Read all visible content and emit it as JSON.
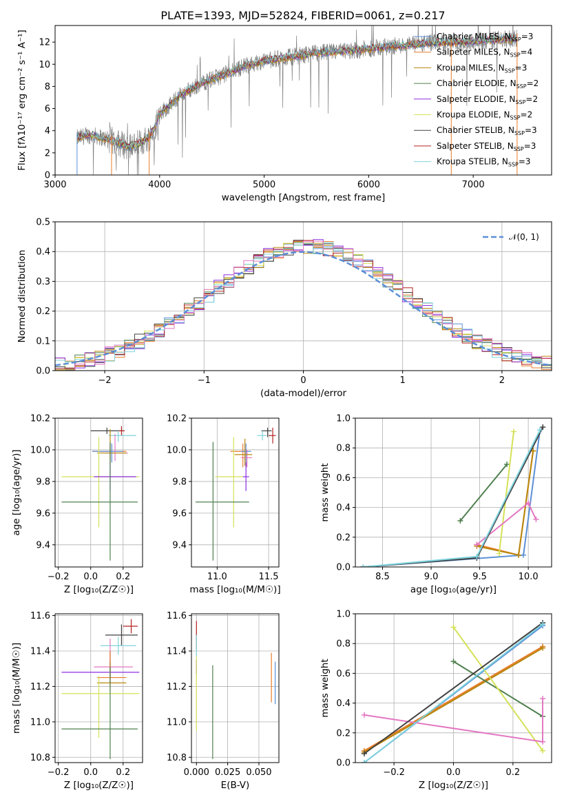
{
  "title": "PLATE=1393, MJD=52824, FIBERID=0061, z=0.217",
  "model_colors": {
    "Chabrier MILES": "#5b8fd6",
    "Salpeter MILES": "#e87d2a",
    "Kroupa MILES": "#b8860b",
    "Chabrier ELODIE": "#4f7f4f",
    "Salpeter ELODIE": "#8a2be2",
    "Kroupa ELODIE": "#d4e157",
    "Chabrier STELIB": "#404040",
    "Salpeter STELIB": "#b22222",
    "Kroupa STELIB": "#7fd3dd",
    "Kroupa pink": "#e377c2",
    "data": "#808080",
    "normal": "#5b8fd6"
  },
  "chart_data": [
    {
      "id": "spectrum",
      "type": "line",
      "title": "PLATE=1393, MJD=52824, FIBERID=0061, z=0.217",
      "xlabel": "wavelength [Angstrom, rest frame]",
      "ylabel": "Flux [fλ10⁻¹⁷ erg cm⁻² s⁻¹ A⁻¹]",
      "xlim": [
        3000,
        7750
      ],
      "ylim": [
        0,
        13.5
      ],
      "xticks": [
        3000,
        4000,
        5000,
        6000,
        7000
      ],
      "yticks": [
        0,
        2,
        4,
        6,
        8,
        10,
        12
      ],
      "legend_position": "right",
      "legend": [
        {
          "label": "Chabrier MILES, N",
          "sub": "SSP",
          "tail": "=3",
          "color": "#5b8fd6"
        },
        {
          "label": "Salpeter MILES, N",
          "sub": "SSP",
          "tail": "=4",
          "color": "#e87d2a"
        },
        {
          "label": "Kroupa MILES, N",
          "sub": "SSP",
          "tail": "=3",
          "color": "#b8860b"
        },
        {
          "label": "Chabrier ELODIE, N",
          "sub": "SSP",
          "tail": "=2",
          "color": "#4f7f4f"
        },
        {
          "label": "Salpeter ELODIE, N",
          "sub": "SSP",
          "tail": "=2",
          "color": "#8a2be2"
        },
        {
          "label": "Kroupa ELODIE, N",
          "sub": "SSP",
          "tail": "=2",
          "color": "#d4e157"
        },
        {
          "label": "Chabrier STELIB, N",
          "sub": "SSP",
          "tail": "=3",
          "color": "#404040"
        },
        {
          "label": "Salpeter STELIB, N",
          "sub": "SSP",
          "tail": "=3",
          "color": "#b22222"
        },
        {
          "label": "Kroupa STELIB, N",
          "sub": "SSP",
          "tail": "=3",
          "color": "#7fd3dd"
        }
      ],
      "continuum_knots": [
        [
          3210,
          3.3
        ],
        [
          3300,
          3.6
        ],
        [
          3400,
          3.5
        ],
        [
          3500,
          3.2
        ],
        [
          3600,
          2.9
        ],
        [
          3700,
          2.6
        ],
        [
          3800,
          2.8
        ],
        [
          3900,
          3.4
        ],
        [
          3950,
          4.2
        ],
        [
          4000,
          5.6
        ],
        [
          4100,
          6.3
        ],
        [
          4200,
          7.2
        ],
        [
          4400,
          8.3
        ],
        [
          4600,
          9.0
        ],
        [
          4800,
          9.8
        ],
        [
          5000,
          10.3
        ],
        [
          5200,
          10.6
        ],
        [
          5500,
          11.0
        ],
        [
          5800,
          11.2
        ],
        [
          6000,
          11.4
        ],
        [
          6300,
          11.7
        ],
        [
          6600,
          11.9
        ],
        [
          6900,
          12.0
        ],
        [
          7200,
          12.2
        ],
        [
          7420,
          12.3
        ]
      ]
    },
    {
      "id": "residuals",
      "type": "line",
      "xlabel": "(data-model)/error",
      "ylabel": "Normed distribution",
      "xlim": [
        -2.5,
        2.5
      ],
      "ylim": [
        0,
        0.5
      ],
      "xticks": [
        -2,
        -1,
        0,
        1,
        2
      ],
      "yticks": [
        0.0,
        0.1,
        0.2,
        0.3,
        0.4,
        0.5
      ],
      "xtick_labels": [
        "−2",
        "−1",
        "0",
        "1",
        "2"
      ],
      "ytick_labels": [
        "0.0",
        "0.1",
        "0.2",
        "0.3",
        "0.4",
        "0.5"
      ],
      "legend": [
        {
          "label": "𝒩(0, 1)",
          "color": "#5b8fd6",
          "style": "dashed"
        }
      ],
      "bin_width": 0.1,
      "gaussian": {
        "mean": 0,
        "sigma": 1
      }
    },
    {
      "id": "age_vs_Z",
      "type": "scatter",
      "xlabel": "Z [log₁₀(Z/Z☉)]",
      "ylabel": "age  [log₁₀(age/yr)]",
      "xlim": [
        -0.22,
        0.32
      ],
      "ylim": [
        9.26,
        10.2
      ],
      "xticks": [
        -0.2,
        0.0,
        0.2
      ],
      "yticks": [
        9.4,
        9.6,
        9.8,
        10.0,
        10.2
      ],
      "xtick_labels": [
        "−0.2",
        "0.0",
        "0.2"
      ],
      "ytick_labels": [
        "9.4",
        "9.6",
        "9.8",
        "10.0",
        "10.2"
      ],
      "points": [
        {
          "x": 0.1,
          "y": 10.12,
          "xerr": [
            0.1,
            0.1
          ],
          "yerr": [
            0.02,
            0.02
          ],
          "color": "#404040"
        },
        {
          "x": 0.19,
          "y": 10.12,
          "xerr": [
            0.02,
            0.02
          ],
          "yerr": [
            0.03,
            0.03
          ],
          "color": "#b22222"
        },
        {
          "x": 0.17,
          "y": 10.09,
          "xerr": [
            0.06,
            0.11
          ],
          "yerr": [
            0.04,
            0.03
          ],
          "color": "#7fd3dd"
        },
        {
          "x": 0.12,
          "y": 9.99,
          "xerr": [
            0.11,
            0.1
          ],
          "yerr": [
            0.08,
            0.05
          ],
          "color": "#e87d2a"
        },
        {
          "x": 0.13,
          "y": 9.99,
          "xerr": [
            0.12,
            0.07
          ],
          "yerr": [
            0.07,
            0.05
          ],
          "color": "#5b8fd6"
        },
        {
          "x": 0.15,
          "y": 9.98,
          "xerr": [
            0.06,
            0.08
          ],
          "yerr": [
            0.05,
            0.12
          ],
          "color": "#e377c2"
        },
        {
          "x": 0.12,
          "y": 9.98,
          "xerr": [
            0.08,
            0.1
          ],
          "yerr": [
            0.05,
            0.15
          ],
          "color": "#b8860b"
        },
        {
          "x": 0.05,
          "y": 9.83,
          "xerr": [
            0.23,
            0.25
          ],
          "yerr": [
            0.32,
            0.25
          ],
          "color": "#d4e157"
        },
        {
          "x": 0.12,
          "y": 9.83,
          "xerr": [
            0.1,
            0.16
          ],
          "yerr": [
            0.09,
            0.09
          ],
          "color": "#8a2be2"
        },
        {
          "x": 0.12,
          "y": 9.67,
          "xerr": [
            0.3,
            0.17
          ],
          "yerr": [
            0.37,
            0.38
          ],
          "color": "#4f7f4f"
        }
      ]
    },
    {
      "id": "age_vs_mass",
      "type": "scatter",
      "xlabel": "mass [log₁₀(M/M☉)]",
      "ylabel": "",
      "xlim": [
        10.75,
        11.6
      ],
      "ylim": [
        9.26,
        10.2
      ],
      "xticks": [
        11.0,
        11.5
      ],
      "yticks": [
        9.4,
        9.6,
        9.8,
        10.0,
        10.2
      ],
      "xtick_labels": [
        "11.0",
        "11.5"
      ],
      "ytick_labels": [
        "9.4",
        "9.6",
        "9.8",
        "10.0",
        "10.2"
      ],
      "points": [
        {
          "x": 11.49,
          "y": 10.12,
          "xerr": [
            0.06,
            0.04
          ],
          "yerr": [
            0.04,
            0.02
          ],
          "color": "#404040"
        },
        {
          "x": 11.54,
          "y": 10.09,
          "xerr": [
            0.04,
            0.03
          ],
          "yerr": [
            0.05,
            0.05
          ],
          "color": "#b22222"
        },
        {
          "x": 11.44,
          "y": 10.09,
          "xerr": [
            0.05,
            0.04
          ],
          "yerr": [
            0.03,
            0.03
          ],
          "color": "#7fd3dd"
        },
        {
          "x": 11.25,
          "y": 9.99,
          "xerr": [
            0.12,
            0.05
          ],
          "yerr": [
            0.1,
            0.05
          ],
          "color": "#e87d2a"
        },
        {
          "x": 11.28,
          "y": 9.99,
          "xerr": [
            0.05,
            0.05
          ],
          "yerr": [
            0.1,
            0.05
          ],
          "color": "#5b8fd6"
        },
        {
          "x": 11.29,
          "y": 9.95,
          "xerr": [
            0.06,
            0.05
          ],
          "yerr": [
            0.06,
            0.05
          ],
          "color": "#e377c2"
        },
        {
          "x": 11.27,
          "y": 9.97,
          "xerr": [
            0.1,
            0.07
          ],
          "yerr": [
            0.07,
            0.1
          ],
          "color": "#b8860b"
        },
        {
          "x": 11.16,
          "y": 9.83,
          "xerr": [
            0.18,
            0.1
          ],
          "yerr": [
            0.32,
            0.25
          ],
          "color": "#d4e157"
        },
        {
          "x": 11.28,
          "y": 9.83,
          "xerr": [
            0.03,
            0.03
          ],
          "yerr": [
            0.09,
            0.09
          ],
          "color": "#8a2be2"
        },
        {
          "x": 10.96,
          "y": 9.67,
          "xerr": [
            0.17,
            0.35
          ],
          "yerr": [
            0.37,
            0.38
          ],
          "color": "#4f7f4f"
        }
      ]
    },
    {
      "id": "weight_vs_age",
      "type": "line",
      "xlabel": "age  [log₁₀(age/yr)]",
      "ylabel": "mass weight",
      "xlim": [
        8.22,
        10.24
      ],
      "ylim": [
        0,
        1
      ],
      "xticks": [
        8.5,
        9.0,
        9.5,
        10.0
      ],
      "yticks": [
        0.0,
        0.2,
        0.4,
        0.6,
        0.8,
        1.0
      ],
      "xtick_labels": [
        "8.5",
        "9.0",
        "9.5",
        "10.0"
      ],
      "ytick_labels": [
        "0.0",
        "0.2",
        "0.4",
        "0.6",
        "0.8",
        "1.0"
      ],
      "series": [
        {
          "color": "#5b8fd6",
          "points": [
            [
              8.3,
              0.0
            ],
            [
              9.95,
              0.08
            ],
            [
              10.12,
              0.92
            ]
          ]
        },
        {
          "color": "#e87d2a",
          "points": [
            [
              9.47,
              0.15
            ],
            [
              9.9,
              0.08
            ],
            [
              10.05,
              0.78
            ]
          ]
        },
        {
          "color": "#b8860b",
          "points": [
            [
              9.47,
              0.14
            ],
            [
              9.9,
              0.08
            ],
            [
              10.05,
              0.78
            ]
          ]
        },
        {
          "color": "#4f7f4f",
          "points": [
            [
              9.3,
              0.31
            ],
            [
              9.78,
              0.69
            ]
          ]
        },
        {
          "color": "#d4e157",
          "points": [
            [
              9.7,
              0.09
            ],
            [
              9.85,
              0.91
            ]
          ]
        },
        {
          "color": "#e377c2",
          "points": [
            [
              9.47,
              0.15
            ],
            [
              10.0,
              0.43
            ],
            [
              10.08,
              0.32
            ]
          ]
        },
        {
          "color": "#404040",
          "points": [
            [
              8.3,
              0.0
            ],
            [
              9.47,
              0.06
            ],
            [
              10.15,
              0.94
            ]
          ]
        },
        {
          "color": "#7fd3dd",
          "points": [
            [
              8.3,
              0.0
            ],
            [
              9.47,
              0.07
            ],
            [
              10.12,
              0.92
            ]
          ]
        }
      ]
    },
    {
      "id": "mass_vs_Z",
      "type": "scatter",
      "xlabel": "Z [log₁₀(Z/Z☉)]",
      "ylabel": "mass [log₁₀(M/M☉)]",
      "xlim": [
        -0.22,
        0.32
      ],
      "ylim": [
        10.77,
        11.61
      ],
      "xticks": [
        -0.2,
        0.0,
        0.2
      ],
      "yticks": [
        10.8,
        11.0,
        11.2,
        11.4,
        11.6
      ],
      "xtick_labels": [
        "−0.2",
        "0.0",
        "0.2"
      ],
      "ytick_labels": [
        "10.8",
        "11.0",
        "11.2",
        "11.4",
        "11.6"
      ],
      "points": [
        {
          "x": 0.25,
          "y": 11.54,
          "xerr": [
            0.05,
            0.04
          ],
          "yerr": [
            0.04,
            0.04
          ],
          "color": "#b22222"
        },
        {
          "x": 0.19,
          "y": 11.49,
          "xerr": [
            0.1,
            0.1
          ],
          "yerr": [
            0.06,
            0.06
          ],
          "color": "#404040"
        },
        {
          "x": 0.17,
          "y": 11.43,
          "xerr": [
            0.11,
            0.11
          ],
          "yerr": [
            0.05,
            0.05
          ],
          "color": "#7fd3dd"
        },
        {
          "x": 0.12,
          "y": 11.31,
          "xerr": [
            0.1,
            0.14
          ],
          "yerr": [
            0.07,
            0.16
          ],
          "color": "#e377c2"
        },
        {
          "x": 0.12,
          "y": 11.28,
          "xerr": [
            0.3,
            0.18
          ],
          "yerr": [
            0.06,
            0.12
          ],
          "color": "#8a2be2"
        },
        {
          "x": 0.12,
          "y": 11.25,
          "xerr": [
            0.08,
            0.1
          ],
          "yerr": [
            0.05,
            0.15
          ],
          "color": "#e87d2a"
        },
        {
          "x": 0.12,
          "y": 11.22,
          "xerr": [
            0.08,
            0.1
          ],
          "yerr": [
            0.05,
            0.12
          ],
          "color": "#b8860b"
        },
        {
          "x": 0.05,
          "y": 11.16,
          "xerr": [
            0.23,
            0.25
          ],
          "yerr": [
            0.25,
            0.1
          ],
          "color": "#d4e157"
        },
        {
          "x": 0.12,
          "y": 10.96,
          "xerr": [
            0.3,
            0.17
          ],
          "yerr": [
            0.17,
            0.35
          ],
          "color": "#4f7f4f"
        }
      ]
    },
    {
      "id": "mass_vs_ebv",
      "type": "scatter",
      "xlabel": "E(B-V)",
      "ylabel": "",
      "xlim": [
        -0.004,
        0.066
      ],
      "ylim": [
        10.77,
        11.61
      ],
      "xticks": [
        0.0,
        0.025,
        0.05
      ],
      "yticks": [
        10.8,
        11.0,
        11.2,
        11.4,
        11.6
      ],
      "xtick_labels": [
        "0.000",
        "0.025",
        "0.050"
      ],
      "ytick_labels": [
        "10.8",
        "11.0",
        "11.2",
        "11.4",
        "11.6"
      ],
      "points": [
        {
          "x": 0.0,
          "y": 11.49,
          "yerr": [
            0.08,
            0.08
          ],
          "color": "#b22222"
        },
        {
          "x": 0.0,
          "y": 11.43,
          "yerr": [
            0.06,
            0.06
          ],
          "color": "#7fd3dd"
        },
        {
          "x": 0.0,
          "y": 11.31,
          "yerr": [
            0.04,
            0.04
          ],
          "color": "#8a2be2"
        },
        {
          "x": 0.0,
          "y": 11.16,
          "yerr": [
            0.21,
            0.21
          ],
          "color": "#d4e157"
        },
        {
          "x": 0.013,
          "y": 11.0,
          "yerr": [
            0.21,
            0.32
          ],
          "color": "#4f7f4f"
        },
        {
          "x": 0.06,
          "y": 11.25,
          "yerr": [
            0.14,
            0.14
          ],
          "color": "#e87d2a"
        },
        {
          "x": 0.063,
          "y": 11.22,
          "yerr": [
            0.12,
            0.12
          ],
          "color": "#5b8fd6"
        }
      ]
    },
    {
      "id": "weight_vs_Z",
      "type": "line",
      "xlabel": "Z [log₁₀(Z/Z☉)]",
      "ylabel": "mass weight",
      "xlim": [
        -0.33,
        0.33
      ],
      "ylim": [
        0,
        1
      ],
      "xticks": [
        -0.2,
        0.0,
        0.2
      ],
      "yticks": [
        0.0,
        0.2,
        0.4,
        0.6,
        0.8,
        1.0
      ],
      "xtick_labels": [
        "−0.2",
        "0.0",
        "0.2"
      ],
      "ytick_labels": [
        "0.0",
        "0.2",
        "0.4",
        "0.6",
        "0.8",
        "1.0"
      ],
      "series": [
        {
          "color": "#5b8fd6",
          "points": [
            [
              -0.3,
              0.0
            ],
            [
              0.3,
              0.92
            ]
          ]
        },
        {
          "color": "#e87d2a",
          "points": [
            [
              -0.3,
              0.08
            ],
            [
              0.3,
              0.78
            ]
          ]
        },
        {
          "color": "#b8860b",
          "points": [
            [
              -0.3,
              0.07
            ],
            [
              0.3,
              0.77
            ]
          ]
        },
        {
          "color": "#4f7f4f",
          "points": [
            [
              0.0,
              0.68
            ],
            [
              0.3,
              0.31
            ]
          ]
        },
        {
          "color": "#d4e157",
          "points": [
            [
              0.0,
              0.91
            ],
            [
              0.3,
              0.08
            ]
          ]
        },
        {
          "color": "#e377c2",
          "points": [
            [
              -0.3,
              0.32
            ],
            [
              0.3,
              0.14
            ],
            [
              0.3,
              0.43
            ]
          ]
        },
        {
          "color": "#404040",
          "points": [
            [
              -0.3,
              0.06
            ],
            [
              0.3,
              0.94
            ]
          ]
        },
        {
          "color": "#7fd3dd",
          "points": [
            [
              -0.3,
              0.0
            ],
            [
              0.3,
              0.93
            ]
          ]
        }
      ]
    }
  ]
}
